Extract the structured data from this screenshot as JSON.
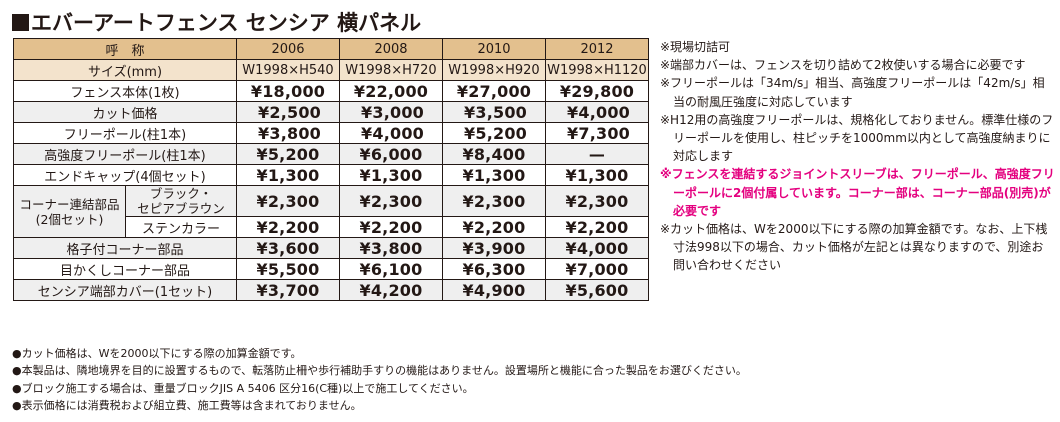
{
  "title": {
    "marker": "■",
    "text": "エバーアートフェンス センシア 横パネル"
  },
  "colors": {
    "header_bg": "#e3c08e",
    "size_row_bg": "#f3e3cc",
    "alt_row_bg": "#efefef",
    "text": "#231815",
    "highlight_note": "#e4007f"
  },
  "table": {
    "header": {
      "name_label": "呼　称",
      "columns": [
        "2006",
        "2008",
        "2010",
        "2012"
      ]
    },
    "size_row": {
      "label": "サイズ(mm)",
      "values": [
        "W1998×H540",
        "W1998×H720",
        "W1998×H920",
        "W1998×H1120"
      ]
    },
    "rows": [
      {
        "label": "フェンス本体(1枚)",
        "values": [
          "¥18,000",
          "¥22,000",
          "¥27,000",
          "¥29,800"
        ]
      },
      {
        "label": "カット価格",
        "values": [
          "¥2,500",
          "¥3,000",
          "¥3,500",
          "¥4,000"
        ]
      },
      {
        "label": "フリーポール(柱1本)",
        "values": [
          "¥3,800",
          "¥4,000",
          "¥5,200",
          "¥7,300"
        ]
      },
      {
        "label": "高強度フリーポール(柱1本)",
        "values": [
          "¥5,200",
          "¥6,000",
          "¥8,400",
          "—"
        ]
      },
      {
        "label": "エンドキャップ(4個セット)",
        "values": [
          "¥1,300",
          "¥1,300",
          "¥1,300",
          "¥1,300"
        ]
      }
    ],
    "corner_group": {
      "label_line1": "コーナー連結部品",
      "label_line2": "(2個セット)",
      "sub_rows": [
        {
          "label_line1": "ブラック・",
          "label_line2": "セピアブラウン",
          "values": [
            "¥2,300",
            "¥2,300",
            "¥2,300",
            "¥2,300"
          ]
        },
        {
          "label_line1": "ステンカラー",
          "label_line2": "",
          "values": [
            "¥2,200",
            "¥2,200",
            "¥2,200",
            "¥2,200"
          ]
        }
      ]
    },
    "rows_after": [
      {
        "label": "格子付コーナー部品",
        "values": [
          "¥3,600",
          "¥3,800",
          "¥3,900",
          "¥4,000"
        ]
      },
      {
        "label": "目かくしコーナー部品",
        "values": [
          "¥5,500",
          "¥6,100",
          "¥6,300",
          "¥7,000"
        ]
      },
      {
        "label": "センシア端部カバー(1セット)",
        "values": [
          "¥3,700",
          "¥4,200",
          "¥4,900",
          "¥5,600"
        ]
      }
    ]
  },
  "notes": [
    {
      "text": "※現場切詰可",
      "highlight": false
    },
    {
      "text": "※端部カバーは、フェンスを切り詰めて2枚使いする場合に必要です",
      "highlight": false
    },
    {
      "text": "※フリーポールは「34m/s」相当、高強度フリーポールは「42m/s」相当の耐風圧強度に対応しています",
      "highlight": false
    },
    {
      "text": "※H12用の高強度フリーポールは、規格化しておりません。標準仕様のフリーポールを使用し、柱ピッチを1000mm以内として高強度納まりに対応します",
      "highlight": false
    },
    {
      "text": "※フェンスを連結するジョイントスリーブは、フリーポール、高強度フリーポールに2個付属しています。コーナー部は、コーナー部品(別売)が必要です",
      "highlight": true
    },
    {
      "text": "※カット価格は、Wを2000以下にする際の加算金額です。なお、上下桟寸法998以下の場合、カット価格が左記とは異なりますので、別途お問い合わせください",
      "highlight": false
    }
  ],
  "footnotes": [
    "●カット価格は、Wを2000以下にする際の加算金額です。",
    "●本製品は、隣地境界を目的に設置するもので、転落防止柵や歩行補助手すりの機能はありません。設置場所と機能に合った製品をお選びください。",
    "●ブロック施工する場合は、重量ブロックJIS A 5406 区分16(C種)以上で施工してください。",
    "●表示価格には消費税および組立費、施工費等は含まれておりません。"
  ]
}
